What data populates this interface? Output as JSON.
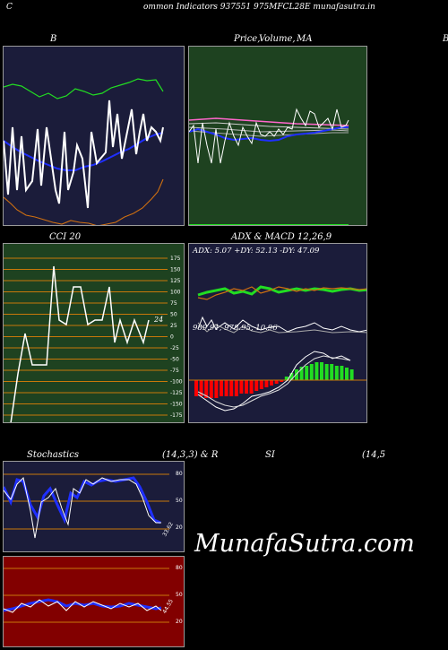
{
  "header": {
    "left_glyph": "C",
    "title": "ommon  Indicators 937551 975MFCL28E munafasutra.in"
  },
  "panels": {
    "bb": {
      "title": "B",
      "right_glyph": "B"
    },
    "price": {
      "title_price": "Price,",
      "title_volume": "Volume,",
      "title_ma": "MA"
    },
    "cci": {
      "title": "CCI 20",
      "current": "24",
      "ticks": [
        "175",
        "150",
        "125",
        "100",
        "75",
        "50",
        "25",
        "0",
        "-25",
        "-50",
        "-75",
        "-100",
        "-125",
        "-150",
        "-175"
      ]
    },
    "adx": {
      "title": "ADX  & MACD 12,26,9",
      "values": "ADX: 5.07 +DY: 52.13 -DY: 47.09",
      "macd_values": "989.91,  978.95,  10.96"
    },
    "stoch": {
      "title_left": "Stochastics",
      "title_params": "(14,3,3) & R",
      "ticks": [
        "80",
        "50",
        "20"
      ],
      "current": "33.62"
    },
    "rsi": {
      "title": "SI",
      "params": "(14,5",
      "ticks": [
        "80",
        "50",
        "20"
      ],
      "current": "44.55"
    }
  },
  "watermark": "MunafaSutra.com",
  "colors": {
    "panel_navy": "#1b1c3a",
    "panel_green": "#1e4220",
    "panel_red": "#820000",
    "grid_orange": "#c8780a",
    "line_blue": "#1f2fff",
    "line_green": "#22dd22",
    "macd_red": "#ff0000"
  }
}
